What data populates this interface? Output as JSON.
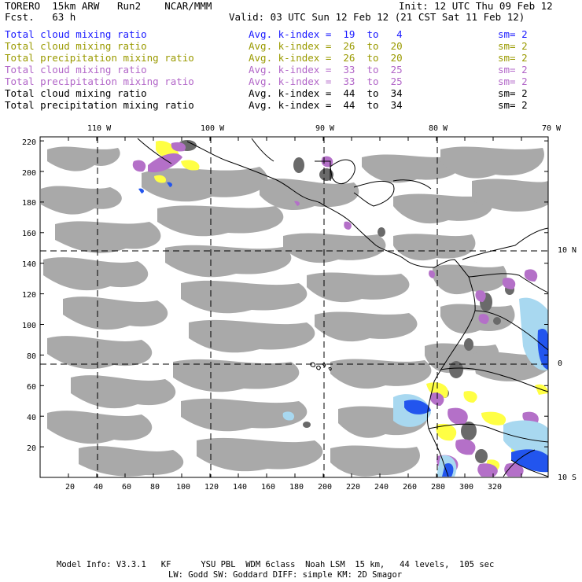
{
  "header": {
    "model": "TORERO  15km ARW   Run2    NCAR/MMM",
    "init": "Init: 12 UTC Thu 09 Feb 12",
    "fcst": "Fcst.   63 h",
    "valid": "Valid: 03 UTC Sun 12 Feb 12 (21 CST Sat 11 Feb 12)"
  },
  "legend": [
    {
      "name": "Total cloud mixing ratio",
      "kindex": "Avg. k-index =  19  to   4",
      "sm": "sm= 2",
      "color": "#1a1aff"
    },
    {
      "name": "Total cloud mixing ratio",
      "kindex": "Avg. k-index =  26  to  20",
      "sm": "sm= 2",
      "color": "#9a9a00"
    },
    {
      "name": "Total precipitation mixing ratio",
      "kindex": "Avg. k-index =  26  to  20",
      "sm": "sm= 2",
      "color": "#9a9a00"
    },
    {
      "name": "Total cloud mixing ratio",
      "kindex": "Avg. k-index =  33  to  25",
      "sm": "sm= 2",
      "color": "#b266c8"
    },
    {
      "name": "Total precipitation mixing ratio",
      "kindex": "Avg. k-index =  33  to  25",
      "sm": "sm= 2",
      "color": "#b266c8"
    },
    {
      "name": "Total cloud mixing ratio",
      "kindex": "Avg. k-index =  44  to  34",
      "sm": "sm= 2",
      "color": "#000000"
    },
    {
      "name": "Total precipitation mixing ratio",
      "kindex": "Avg. k-index =  44  to  34",
      "sm": "sm= 2",
      "color": "#000000"
    }
  ],
  "axes": {
    "lon_labels": [
      "110 W",
      "100 W",
      "90 W",
      "80 W",
      "70 W"
    ],
    "lat_labels": [
      "10 N",
      "0",
      "10 S"
    ],
    "y_ticks": [
      "220",
      "200",
      "180",
      "160",
      "140",
      "120",
      "100",
      "80",
      "60",
      "40",
      "20"
    ],
    "x_ticks": [
      "20",
      "40",
      "60",
      "80",
      "100",
      "120",
      "140",
      "160",
      "180",
      "200",
      "220",
      "240",
      "260",
      "280",
      "300",
      "320"
    ]
  },
  "footer": {
    "line1": "Model Info: V3.3.1   KF      YSU PBL  WDM 6class  Noah LSM  15 km,   44 levels,  105 sec",
    "line2": "LW: Godd SW: Goddard DIFF: simple KM: 2D Smagor"
  },
  "colors": {
    "cloud_gray": "#a9a9a9",
    "dark_gray": "#6a6a6a",
    "yellow": "#ffff44",
    "purple": "#b470c8",
    "blue": "#2255ee",
    "light_blue": "#a8d8f0"
  }
}
